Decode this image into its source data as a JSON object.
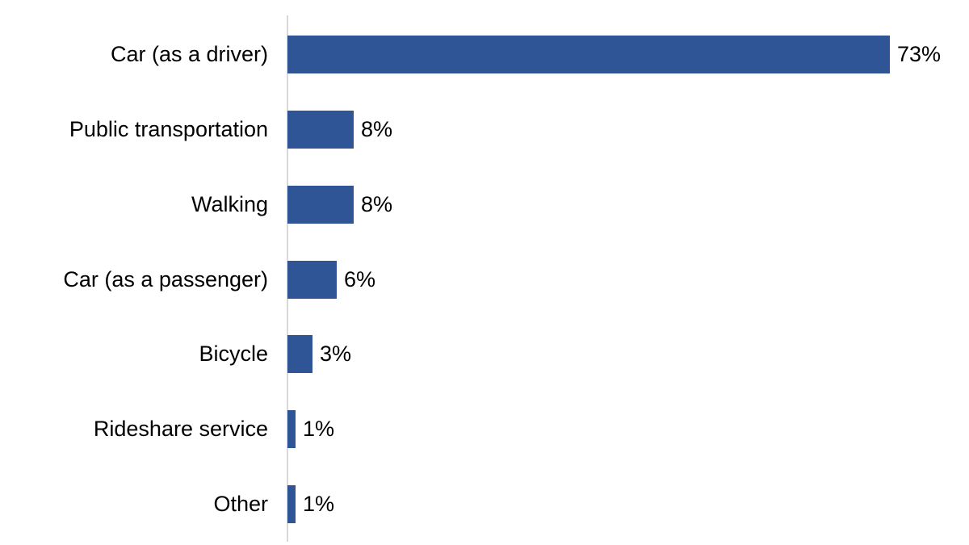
{
  "chart_data": {
    "type": "bar",
    "orientation": "horizontal",
    "title": "",
    "xlabel": "",
    "ylabel": "",
    "categories": [
      "Car (as a driver)",
      "Public transportation",
      "Walking",
      "Car (as a passenger)",
      "Bicycle",
      "Rideshare service",
      "Other"
    ],
    "values": [
      73,
      8,
      8,
      6,
      3,
      1,
      1
    ],
    "value_labels": [
      "73%",
      "8%",
      "8%",
      "6%",
      "3%",
      "1%",
      "1%"
    ],
    "unit": "%",
    "xlim": [
      0,
      82
    ],
    "grid": false,
    "legend": "none",
    "colors": {
      "bar": "#2F5597",
      "axis_line": "#D9D9D9",
      "text": "#000000",
      "background": "#FFFFFF"
    }
  }
}
